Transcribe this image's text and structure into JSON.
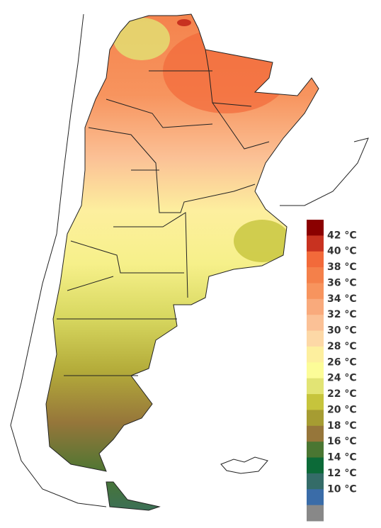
{
  "legend": {
    "labels": [
      "42 °C",
      "40 °C",
      "38 °C",
      "36 °C",
      "34 °C",
      "32 °C",
      "30 °C",
      "28 °C",
      "26 °C",
      "24 °C",
      "22 °C",
      "20 °C",
      "18 °C",
      "16 °C",
      "14 °C",
      "12 °C",
      "10 °C"
    ],
    "colors": [
      "#8b0000",
      "#c83220",
      "#f26a3a",
      "#f4804a",
      "#f7945e",
      "#f9aa7c",
      "#fbc196",
      "#fdd8a6",
      "#fdef9e",
      "#fcfc98",
      "#e2e474",
      "#c6c43c",
      "#a69c32",
      "#96763a",
      "#4a7632",
      "#0c6a38",
      "#346c68",
      "#3a6ca8",
      "#888888"
    ]
  }
}
